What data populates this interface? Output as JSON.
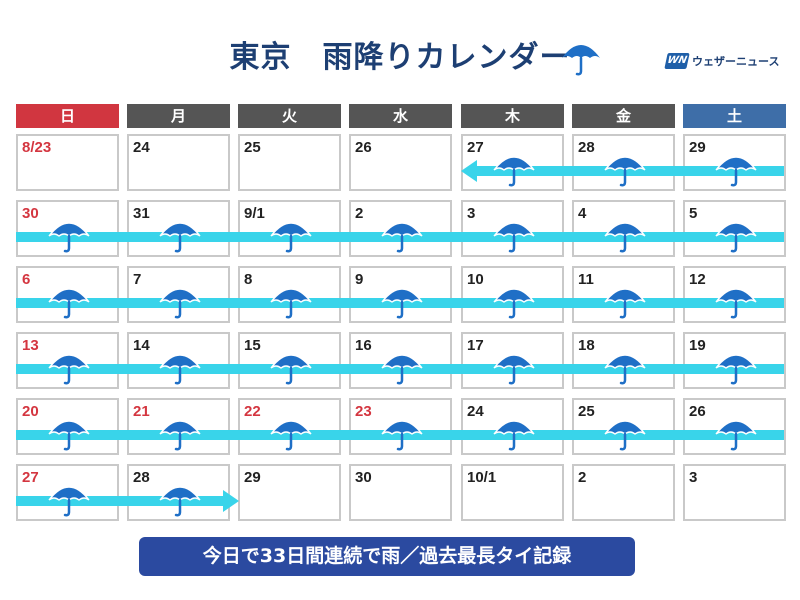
{
  "title": "東京　雨降りカレンダー",
  "logo": {
    "text": "ウェザーニュース",
    "mark": "WN"
  },
  "colors": {
    "sunday_header": "#d13640",
    "weekday_header": "#555555",
    "saturday_header": "#3e6ea8",
    "holiday_text": "#d43640",
    "rain_band": "#39d4ea",
    "umbrella": "#1f6fc6",
    "footer_bg": "#2b4aa0"
  },
  "weekdays": [
    "日",
    "月",
    "火",
    "水",
    "木",
    "金",
    "土"
  ],
  "weeks": [
    [
      {
        "date": "8/23",
        "red": true,
        "rain": false
      },
      {
        "date": "24",
        "red": false,
        "rain": false
      },
      {
        "date": "25",
        "red": false,
        "rain": false
      },
      {
        "date": "26",
        "red": false,
        "rain": false
      },
      {
        "date": "27",
        "red": false,
        "rain": true
      },
      {
        "date": "28",
        "red": false,
        "rain": true
      },
      {
        "date": "29",
        "red": false,
        "rain": true
      }
    ],
    [
      {
        "date": "30",
        "red": true,
        "rain": true
      },
      {
        "date": "31",
        "red": false,
        "rain": true
      },
      {
        "date": "9/1",
        "red": false,
        "rain": true
      },
      {
        "date": "2",
        "red": false,
        "rain": true
      },
      {
        "date": "3",
        "red": false,
        "rain": true
      },
      {
        "date": "4",
        "red": false,
        "rain": true
      },
      {
        "date": "5",
        "red": false,
        "rain": true
      }
    ],
    [
      {
        "date": "6",
        "red": true,
        "rain": true
      },
      {
        "date": "7",
        "red": false,
        "rain": true
      },
      {
        "date": "8",
        "red": false,
        "rain": true
      },
      {
        "date": "9",
        "red": false,
        "rain": true
      },
      {
        "date": "10",
        "red": false,
        "rain": true
      },
      {
        "date": "11",
        "red": false,
        "rain": true
      },
      {
        "date": "12",
        "red": false,
        "rain": true
      }
    ],
    [
      {
        "date": "13",
        "red": true,
        "rain": true
      },
      {
        "date": "14",
        "red": false,
        "rain": true
      },
      {
        "date": "15",
        "red": false,
        "rain": true
      },
      {
        "date": "16",
        "red": false,
        "rain": true
      },
      {
        "date": "17",
        "red": false,
        "rain": true
      },
      {
        "date": "18",
        "red": false,
        "rain": true
      },
      {
        "date": "19",
        "red": false,
        "rain": true
      }
    ],
    [
      {
        "date": "20",
        "red": true,
        "rain": true
      },
      {
        "date": "21",
        "red": true,
        "rain": true
      },
      {
        "date": "22",
        "red": true,
        "rain": true
      },
      {
        "date": "23",
        "red": true,
        "rain": true
      },
      {
        "date": "24",
        "red": false,
        "rain": true
      },
      {
        "date": "25",
        "red": false,
        "rain": true
      },
      {
        "date": "26",
        "red": false,
        "rain": true
      }
    ],
    [
      {
        "date": "27",
        "red": true,
        "rain": true
      },
      {
        "date": "28",
        "red": false,
        "rain": true
      },
      {
        "date": "29",
        "red": false,
        "rain": false
      },
      {
        "date": "30",
        "red": false,
        "rain": false
      },
      {
        "date": "10/1",
        "red": false,
        "rain": false
      },
      {
        "date": "2",
        "red": false,
        "rain": false
      },
      {
        "date": "3",
        "red": false,
        "rain": false
      }
    ]
  ],
  "icons": {
    "title": "umbrella-icon",
    "rain_day": "umbrella-icon"
  },
  "footer": "今日で33日間連続で雨／過去最長タイ記録"
}
